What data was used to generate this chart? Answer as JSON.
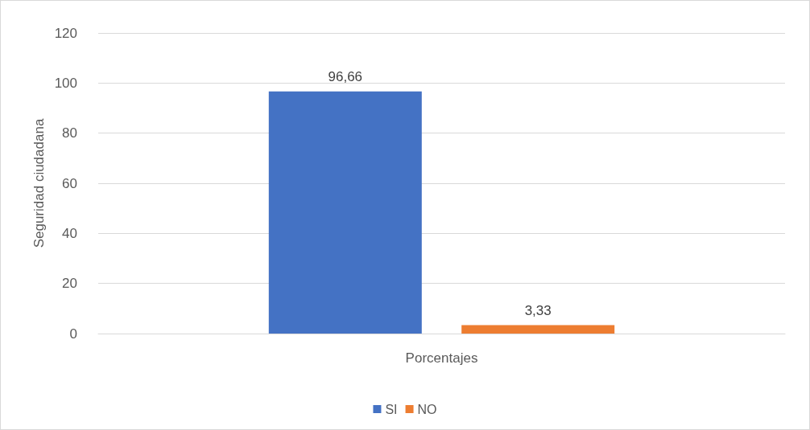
{
  "chart_data": {
    "type": "bar",
    "ylabel": "Seguridad ciudadana",
    "categories": [
      "Porcentajes"
    ],
    "series": [
      {
        "name": "SI",
        "color": "#4472c4",
        "values": [
          96.66
        ],
        "value_labels": [
          "96,66"
        ]
      },
      {
        "name": "NO",
        "color": "#ed7d31",
        "values": [
          3.33
        ],
        "value_labels": [
          "3,33"
        ]
      }
    ],
    "ylim": [
      0,
      120
    ],
    "yticks": [
      0,
      20,
      40,
      60,
      80,
      100,
      120
    ],
    "grid": "y",
    "legend": "bottom"
  }
}
